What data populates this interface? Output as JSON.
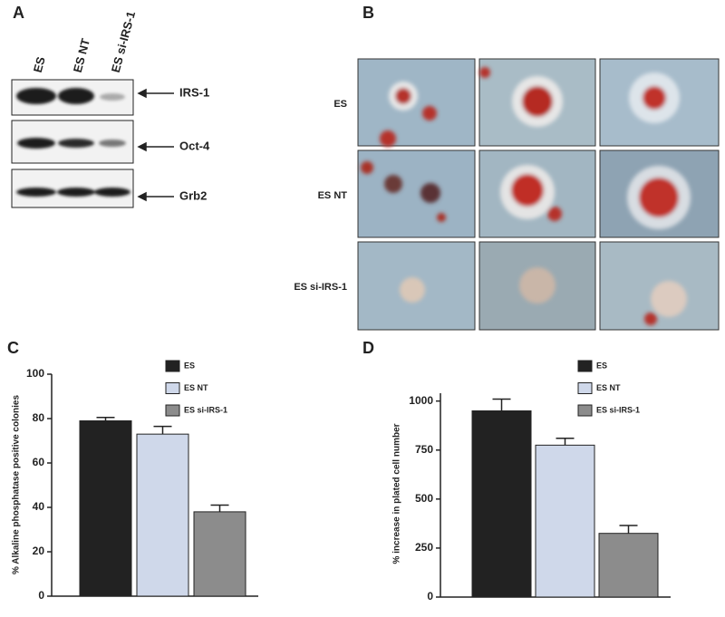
{
  "panel_labels": [
    "A",
    "B",
    "C",
    "D"
  ],
  "blot": {
    "lanes": [
      "ES",
      "ES NT",
      "ES si-IRS-1"
    ],
    "markers": [
      "IRS-1",
      "Oct-4",
      "Grb2"
    ]
  },
  "micrographs": {
    "rows": [
      "ES",
      "ES NT",
      "ES si-IRS-1"
    ]
  },
  "chart_data": [
    {
      "type": "bar",
      "y_label": "% Alkaline phosphatase positive colonies",
      "categories": [
        "ES",
        "ES NT",
        "ES si-IRS-1"
      ],
      "values": [
        79,
        73,
        38
      ],
      "errors": [
        1.5,
        3.5,
        3
      ],
      "colors": [
        "#222222",
        "#cfd8ea",
        "#8c8c8c"
      ],
      "ylim": [
        0,
        100
      ],
      "yticks": [
        0,
        20,
        40,
        60,
        80,
        100
      ],
      "grid": false
    },
    {
      "type": "bar",
      "y_label": "% increase in plated cell number",
      "categories": [
        "ES",
        "ES NT",
        "ES si-IRS-1"
      ],
      "values": [
        950,
        775,
        325
      ],
      "errors": [
        60,
        35,
        40
      ],
      "colors": [
        "#222222",
        "#cfd8ea",
        "#8c8c8c"
      ],
      "ylim": [
        0,
        1040
      ],
      "yticks": [
        0,
        250,
        500,
        750,
        1000
      ],
      "grid": false
    }
  ]
}
